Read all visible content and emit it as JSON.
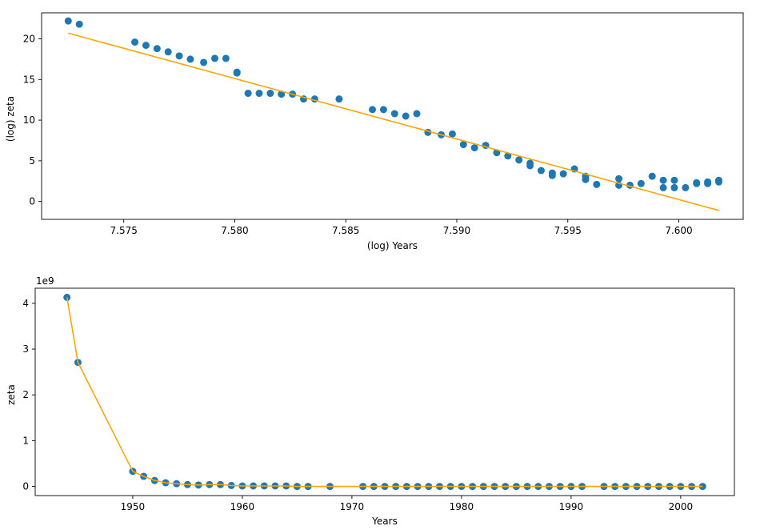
{
  "colors": {
    "points": "#1f77b4",
    "fit_line": "#ffa500",
    "axes": "#000000"
  },
  "chart_data": [
    {
      "type": "scatter",
      "title": "",
      "xlabel": "(log) Years",
      "ylabel": "(log) zeta",
      "xlim": [
        7.5713,
        7.6029
      ],
      "ylim": [
        -2.2,
        23.2
      ],
      "x_ticks": [
        7.575,
        7.58,
        7.585,
        7.59,
        7.595,
        7.6
      ],
      "x_tick_labels": [
        "7.575",
        "7.580",
        "7.585",
        "7.590",
        "7.595",
        "7.600"
      ],
      "y_ticks": [
        0,
        5,
        10,
        15,
        20
      ],
      "y_tick_labels": [
        "0",
        "5",
        "10",
        "15",
        "20"
      ],
      "grid": false,
      "series": [
        {
          "kind": "scatter",
          "points": [
            [
              7.5725,
              22.2
            ],
            [
              7.573,
              21.8
            ],
            [
              7.5755,
              19.6
            ],
            [
              7.576,
              19.2
            ],
            [
              7.5765,
              18.8
            ],
            [
              7.577,
              18.4
            ],
            [
              7.5775,
              17.9
            ],
            [
              7.578,
              17.5
            ],
            [
              7.5786,
              17.1
            ],
            [
              7.5791,
              17.6
            ],
            [
              7.5796,
              17.6
            ],
            [
              7.5801,
              15.9
            ],
            [
              7.5801,
              15.8
            ],
            [
              7.5806,
              13.3
            ],
            [
              7.5811,
              13.3
            ],
            [
              7.5816,
              13.3
            ],
            [
              7.5821,
              13.2
            ],
            [
              7.5826,
              13.2
            ],
            [
              7.5831,
              12.6
            ],
            [
              7.5836,
              12.6
            ],
            [
              7.5847,
              12.6
            ],
            [
              7.5862,
              11.3
            ],
            [
              7.5867,
              11.3
            ],
            [
              7.5872,
              10.8
            ],
            [
              7.5877,
              10.5
            ],
            [
              7.5882,
              10.8
            ],
            [
              7.5887,
              8.5
            ],
            [
              7.5893,
              8.2
            ],
            [
              7.5898,
              8.3
            ],
            [
              7.5903,
              7.0
            ],
            [
              7.5908,
              6.6
            ],
            [
              7.5913,
              6.9
            ],
            [
              7.5918,
              6.0
            ],
            [
              7.5923,
              5.6
            ],
            [
              7.5928,
              5.1
            ],
            [
              7.5933,
              4.7
            ],
            [
              7.5933,
              4.4
            ],
            [
              7.5938,
              3.8
            ],
            [
              7.5943,
              3.5
            ],
            [
              7.5943,
              3.2
            ],
            [
              7.5948,
              3.4
            ],
            [
              7.5953,
              4.0
            ],
            [
              7.5958,
              3.1
            ],
            [
              7.5958,
              2.7
            ],
            [
              7.5963,
              2.1
            ],
            [
              7.5973,
              2.8
            ],
            [
              7.5973,
              2.0
            ],
            [
              7.5978,
              2.0
            ],
            [
              7.5983,
              2.2
            ],
            [
              7.5988,
              3.1
            ],
            [
              7.5993,
              2.6
            ],
            [
              7.5993,
              1.7
            ],
            [
              7.5998,
              2.6
            ],
            [
              7.5998,
              1.7
            ],
            [
              7.6003,
              1.7
            ],
            [
              7.6008,
              2.3
            ],
            [
              7.6008,
              2.2
            ],
            [
              7.6013,
              2.4
            ],
            [
              7.6013,
              2.2
            ],
            [
              7.6018,
              2.6
            ],
            [
              7.6018,
              2.4
            ]
          ]
        },
        {
          "kind": "line",
          "points": [
            [
              7.5725,
              20.7
            ],
            [
              7.6018,
              -1.1
            ]
          ]
        }
      ]
    },
    {
      "type": "scatter",
      "title": "",
      "xlabel": "Years",
      "ylabel": "zeta",
      "offset_label": "1e9",
      "xlim": [
        1941.1,
        2004.9
      ],
      "ylim": [
        -0.2,
        4.33
      ],
      "x_ticks": [
        1950,
        1960,
        1970,
        1980,
        1990,
        2000
      ],
      "x_tick_labels": [
        "1950",
        "1960",
        "1970",
        "1980",
        "1990",
        "2000"
      ],
      "y_ticks": [
        0,
        1,
        2,
        3,
        4
      ],
      "y_tick_labels": [
        "0",
        "1",
        "2",
        "3",
        "4"
      ],
      "grid": false,
      "series": [
        {
          "kind": "scatter",
          "points": [
            [
              1944,
              4.13
            ],
            [
              1945,
              2.71
            ],
            [
              1950,
              0.33
            ],
            [
              1951,
              0.22
            ],
            [
              1952,
              0.13
            ],
            [
              1953,
              0.08
            ],
            [
              1954,
              0.06
            ],
            [
              1955,
              0.04
            ],
            [
              1956,
              0.03
            ],
            [
              1957,
              0.04
            ],
            [
              1958,
              0.04
            ],
            [
              1959,
              0.02
            ],
            [
              1960,
              0.01
            ],
            [
              1961,
              0.01
            ],
            [
              1962,
              0.01
            ],
            [
              1963,
              0.01
            ],
            [
              1964,
              0.01
            ],
            [
              1965,
              0.0
            ],
            [
              1966,
              0.0
            ],
            [
              1968,
              0.0
            ],
            [
              1971,
              0.0
            ],
            [
              1972,
              0.0
            ],
            [
              1973,
              0.0
            ],
            [
              1974,
              0.0
            ],
            [
              1975,
              0.0
            ],
            [
              1976,
              0.0
            ],
            [
              1977,
              0.0
            ],
            [
              1978,
              0.0
            ],
            [
              1979,
              0.0
            ],
            [
              1980,
              0.0
            ],
            [
              1981,
              0.0
            ],
            [
              1982,
              0.0
            ],
            [
              1983,
              0.0
            ],
            [
              1984,
              0.0
            ],
            [
              1985,
              0.0
            ],
            [
              1986,
              0.0
            ],
            [
              1987,
              0.0
            ],
            [
              1988,
              0.0
            ],
            [
              1989,
              0.0
            ],
            [
              1990,
              0.0
            ],
            [
              1991,
              0.0
            ],
            [
              1993,
              0.0
            ],
            [
              1994,
              0.0
            ],
            [
              1995,
              0.0
            ],
            [
              1996,
              0.0
            ],
            [
              1997,
              0.0
            ],
            [
              1998,
              0.0
            ],
            [
              1999,
              0.0
            ],
            [
              2000,
              0.0
            ],
            [
              2001,
              0.0
            ],
            [
              2002,
              0.0
            ]
          ]
        },
        {
          "kind": "line",
          "points": [
            [
              1944,
              4.13
            ],
            [
              1945,
              2.71
            ],
            [
              1950,
              0.33
            ],
            [
              1951,
              0.22
            ],
            [
              1952,
              0.13
            ],
            [
              1953,
              0.08
            ],
            [
              1954,
              0.06
            ],
            [
              1955,
              0.04
            ],
            [
              1956,
              0.03
            ],
            [
              1957,
              0.04
            ],
            [
              1958,
              0.04
            ],
            [
              1959,
              0.02
            ],
            [
              1960,
              0.01
            ],
            [
              1961,
              0.01
            ],
            [
              1962,
              0.01
            ],
            [
              1963,
              0.01
            ],
            [
              1964,
              0.01
            ],
            [
              1965,
              0.0
            ],
            [
              1966,
              0.0
            ],
            [
              1968,
              0.0
            ],
            [
              1971,
              0.0
            ],
            [
              1972,
              0.0
            ],
            [
              1973,
              0.0
            ],
            [
              1974,
              0.0
            ],
            [
              1975,
              0.0
            ],
            [
              1976,
              0.0
            ],
            [
              1977,
              0.0
            ],
            [
              1978,
              0.0
            ],
            [
              1979,
              0.0
            ],
            [
              1980,
              0.0
            ],
            [
              1981,
              0.0
            ],
            [
              1982,
              0.0
            ],
            [
              1983,
              0.0
            ],
            [
              1984,
              0.0
            ],
            [
              1985,
              0.0
            ],
            [
              1986,
              0.0
            ],
            [
              1987,
              0.0
            ],
            [
              1988,
              0.0
            ],
            [
              1989,
              0.0
            ],
            [
              1990,
              0.0
            ],
            [
              1991,
              0.0
            ],
            [
              1993,
              0.0
            ],
            [
              1994,
              0.0
            ],
            [
              1995,
              0.0
            ],
            [
              1996,
              0.0
            ],
            [
              1997,
              0.0
            ],
            [
              1998,
              0.0
            ],
            [
              1999,
              0.0
            ],
            [
              2000,
              0.0
            ],
            [
              2001,
              0.0
            ],
            [
              2002,
              0.0
            ]
          ]
        }
      ]
    }
  ]
}
